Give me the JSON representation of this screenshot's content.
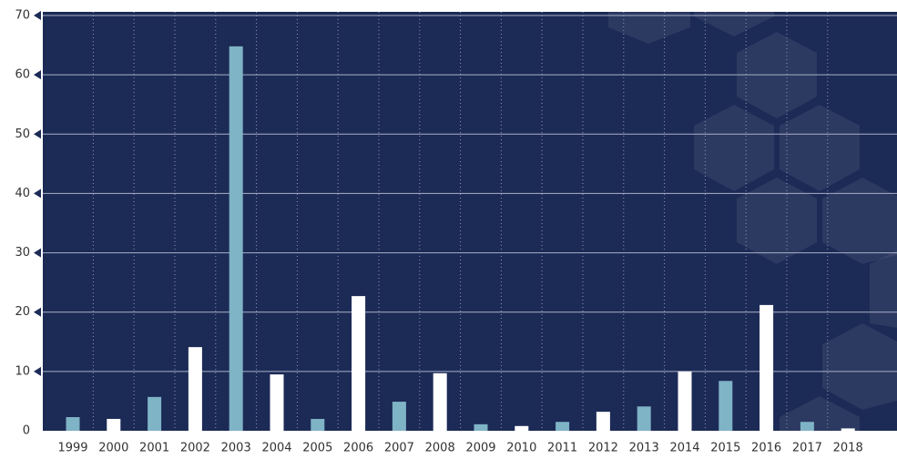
{
  "chart_data": {
    "type": "bar",
    "categories": [
      "1999",
      "2000",
      "2001",
      "2002",
      "2003",
      "2004",
      "2005",
      "2006",
      "2007",
      "2008",
      "2009",
      "2010",
      "2011",
      "2012",
      "2013",
      "2014",
      "2015",
      "2016",
      "2017",
      "2018"
    ],
    "values": [
      2.3,
      2.0,
      5.7,
      14.1,
      64.8,
      9.5,
      2.0,
      22.7,
      4.9,
      9.7,
      1.1,
      0.8,
      1.5,
      3.2,
      4.1,
      10.0,
      8.4,
      21.2,
      1.5,
      0.4
    ],
    "colors": [
      "#7fb3c6",
      "#ffffff",
      "#7fb3c6",
      "#ffffff",
      "#7fb3c6",
      "#ffffff",
      "#7fb3c6",
      "#ffffff",
      "#7fb3c6",
      "#ffffff",
      "#7fb3c6",
      "#ffffff",
      "#7fb3c6",
      "#ffffff",
      "#7fb3c6",
      "#ffffff",
      "#7fb3c6",
      "#ffffff",
      "#7fb3c6",
      "#ffffff"
    ],
    "ylim": [
      0,
      70
    ],
    "yticks": [
      0,
      10,
      20,
      30,
      40,
      50,
      60,
      70
    ],
    "grid": true,
    "background": "#1c2a56"
  }
}
